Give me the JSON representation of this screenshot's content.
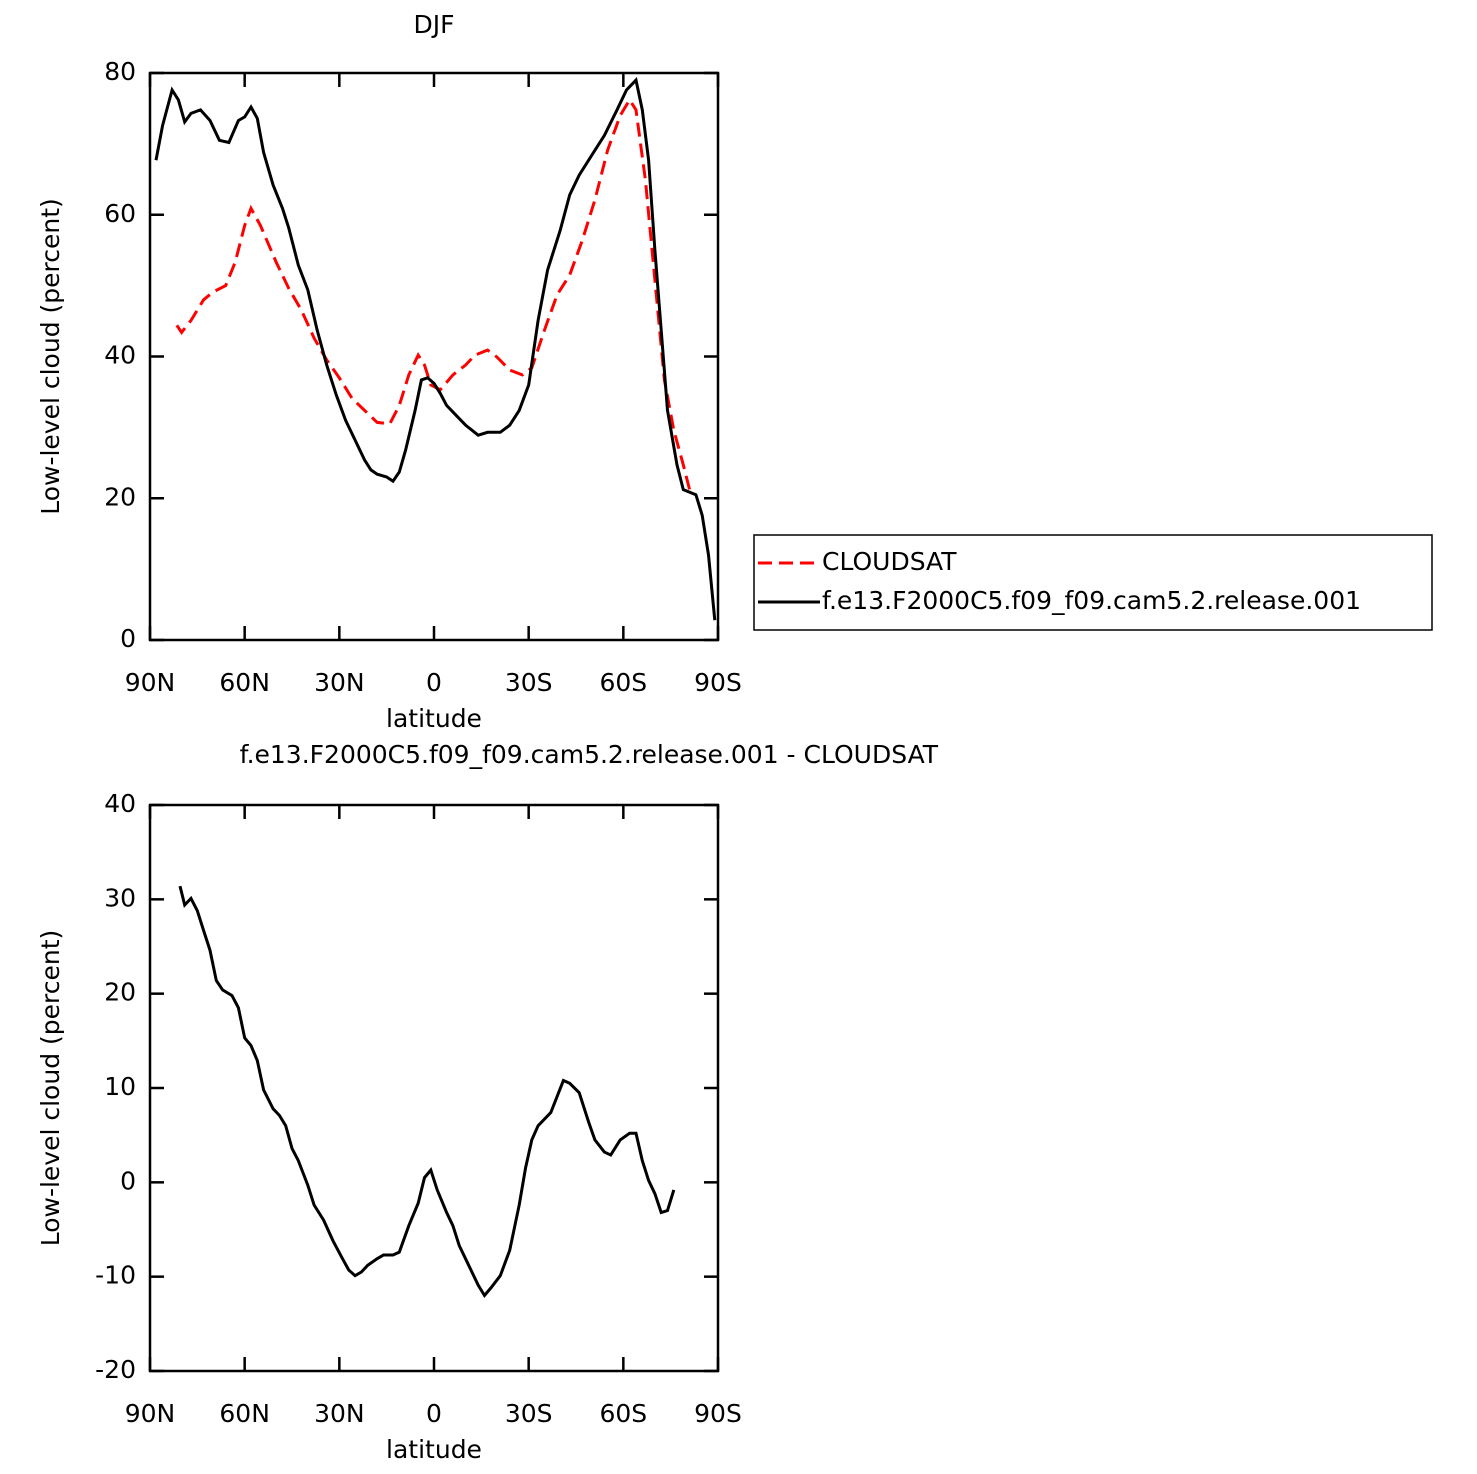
{
  "chart_data": [
    {
      "type": "line",
      "title": "DJF",
      "xlabel": "latitude",
      "ylabel": "Low-level cloud (percent)",
      "xlim": [
        90,
        -90
      ],
      "ylim": [
        0,
        80
      ],
      "xticks": [
        {
          "value": 90,
          "label": "90N"
        },
        {
          "value": 60,
          "label": "60N"
        },
        {
          "value": 30,
          "label": "30N"
        },
        0,
        {
          "value": -30,
          "label": "30S"
        },
        {
          "value": -60,
          "label": "60S"
        },
        {
          "value": -90,
          "label": "90S"
        }
      ],
      "yticks": [
        0,
        20,
        40,
        60,
        80
      ],
      "legend": "right",
      "series": [
        {
          "name": "CLOUDSAT",
          "color": "#ff0000",
          "line_style": "dashed",
          "x": [
            81.5,
            80,
            77,
            73,
            70,
            66,
            63,
            60,
            58,
            55,
            50,
            46,
            42,
            38,
            34,
            30,
            26,
            22,
            18,
            14,
            11,
            8,
            5,
            3,
            1,
            -2,
            -6,
            -10,
            -13,
            -17,
            -20,
            -24,
            -28,
            -31,
            -35,
            -39,
            -43,
            -47,
            -51,
            -55,
            -59,
            -62,
            -64,
            -67,
            -70,
            -73,
            -76,
            -79,
            -81
          ],
          "values": [
            44.4,
            43.4,
            45.1,
            48,
            49.1,
            50,
            53.3,
            58.5,
            60.9,
            58.5,
            53.3,
            49.6,
            46.5,
            42.6,
            39.5,
            37,
            34.1,
            32.4,
            30.7,
            30.5,
            33.1,
            37.4,
            40.2,
            38.8,
            36,
            35.3,
            37.4,
            38.8,
            40.2,
            40.9,
            39.9,
            38.1,
            37.4,
            38.4,
            43.7,
            48.7,
            51.5,
            56.4,
            62.1,
            69.1,
            74,
            76.2,
            74.8,
            64.9,
            50.8,
            36.7,
            29.6,
            24.7,
            21.2
          ]
        },
        {
          "name": "f.e13.F2000C5.f09_f09.cam5.2.release.001",
          "color": "#000000",
          "line_style": "solid",
          "x": [
            88.1,
            86,
            83,
            81,
            79,
            77,
            74,
            71,
            68,
            65,
            62,
            60,
            58,
            56,
            54,
            51,
            48,
            46,
            43,
            40,
            37,
            34,
            31,
            28,
            25,
            22,
            20,
            18,
            15,
            13,
            11,
            9,
            6,
            4,
            2,
            0,
            -2,
            -4,
            -7,
            -10,
            -14,
            -17,
            -21,
            -24,
            -27,
            -30,
            -33,
            -36,
            -40,
            -43,
            -46,
            -50,
            -54,
            -58,
            -61,
            -64,
            -66,
            -68,
            -70,
            -72,
            -74,
            -77,
            -79,
            -83,
            -85,
            -87,
            -89
          ],
          "values": [
            67.7,
            72.6,
            77.6,
            76.2,
            73.1,
            74.3,
            74.8,
            73.3,
            70.5,
            70.2,
            73.3,
            73.8,
            75.2,
            73.6,
            68.8,
            64.2,
            60.9,
            58.1,
            52.9,
            49.4,
            43.7,
            38.8,
            34.6,
            31,
            28.2,
            25.4,
            24,
            23.4,
            23,
            22.4,
            23.7,
            26.8,
            32.4,
            36.7,
            37,
            36.2,
            34.8,
            33.1,
            31.7,
            30.3,
            28.9,
            29.3,
            29.3,
            30.3,
            32.4,
            36,
            45.1,
            52.2,
            57.8,
            62.8,
            65.6,
            68.4,
            71.2,
            74.8,
            77.6,
            79,
            74.8,
            67.7,
            55,
            43.7,
            32.4,
            24.7,
            21.2,
            20.5,
            17.6,
            12,
            2.8
          ]
        }
      ]
    },
    {
      "type": "line",
      "title": "f.e13.F2000C5.f09_f09.cam5.2.release.001 - CLOUDSAT",
      "xlabel": "latitude",
      "ylabel": "Low-level cloud (percent)",
      "xlim": [
        90,
        -90
      ],
      "ylim": [
        -20,
        40
      ],
      "xticks": [
        {
          "value": 90,
          "label": "90N"
        },
        {
          "value": 60,
          "label": "60N"
        },
        {
          "value": 30,
          "label": "30N"
        },
        0,
        {
          "value": -30,
          "label": "30S"
        },
        {
          "value": -60,
          "label": "60S"
        },
        {
          "value": -90,
          "label": "90S"
        }
      ],
      "yticks": [
        -20,
        -10,
        0,
        10,
        20,
        30,
        40
      ],
      "series": [
        {
          "color": "#000000",
          "line_style": "solid",
          "x": [
            80.5,
            79,
            77,
            75,
            73,
            71,
            69,
            67,
            64,
            62,
            60,
            58,
            56,
            54,
            51,
            49,
            47,
            45,
            43,
            40,
            38,
            35,
            32,
            29,
            27,
            25,
            23,
            21,
            18,
            16,
            13,
            11,
            8,
            5,
            3,
            1,
            -1,
            -4,
            -6,
            -8,
            -11,
            -14,
            -16,
            -18,
            -21,
            -24,
            -27,
            -29,
            -31,
            -33,
            -37,
            -41,
            -43,
            -46,
            -49,
            -51,
            -54,
            -56,
            -59,
            -62,
            -64,
            -66,
            -68,
            -70,
            -72,
            -74,
            -76
          ],
          "values": [
            31.4,
            29.4,
            30.1,
            28.8,
            26.7,
            24.6,
            21.4,
            20.4,
            19.8,
            18.5,
            15.3,
            14.5,
            12.9,
            9.8,
            7.8,
            7.1,
            6,
            3.6,
            2.3,
            -0.3,
            -2.4,
            -4,
            -6.2,
            -8.1,
            -9.3,
            -9.9,
            -9.5,
            -8.8,
            -8.1,
            -7.7,
            -7.7,
            -7.4,
            -4.6,
            -2.2,
            0.5,
            1.3,
            -0.8,
            -3.2,
            -4.6,
            -6.7,
            -8.8,
            -10.9,
            -12,
            -11.2,
            -9.9,
            -7.2,
            -2.4,
            1.5,
            4.5,
            6,
            7.4,
            10.8,
            10.5,
            9.5,
            6.4,
            4.5,
            3.2,
            2.9,
            4.5,
            5.2,
            5.2,
            2.3,
            0.2,
            -1.2,
            -3.2,
            -3,
            -0.8
          ]
        }
      ]
    }
  ]
}
